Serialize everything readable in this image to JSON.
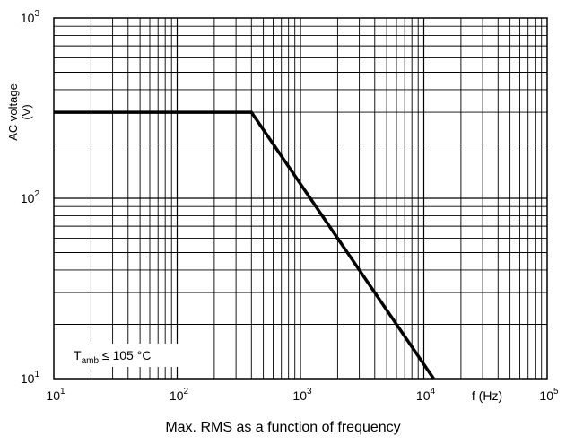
{
  "chart_data": {
    "type": "line",
    "caption": "Max. RMS as a function of frequency",
    "ylabel": "AC voltage",
    "yunit": "(V)",
    "xlabel": "f (Hz)",
    "xscale": "log",
    "yscale": "log",
    "xlim": [
      10,
      100000
    ],
    "ylim": [
      10,
      1000
    ],
    "grid": true,
    "x_ticks": [
      {
        "base": "10",
        "exp": "1"
      },
      {
        "base": "10",
        "exp": "2"
      },
      {
        "base": "10",
        "exp": "3"
      },
      {
        "base": "10",
        "exp": "4"
      },
      {
        "base": "10",
        "exp": "5"
      }
    ],
    "y_ticks": [
      {
        "base": "10",
        "exp": "1"
      },
      {
        "base": "10",
        "exp": "2"
      },
      {
        "base": "10",
        "exp": "3"
      }
    ],
    "annotation": {
      "prefix": "T",
      "sub": "amb",
      "rest": " ≤ 105 °C"
    },
    "series": [
      {
        "x": [
          10,
          400,
          12000
        ],
        "y": [
          300,
          300,
          10
        ]
      }
    ]
  }
}
